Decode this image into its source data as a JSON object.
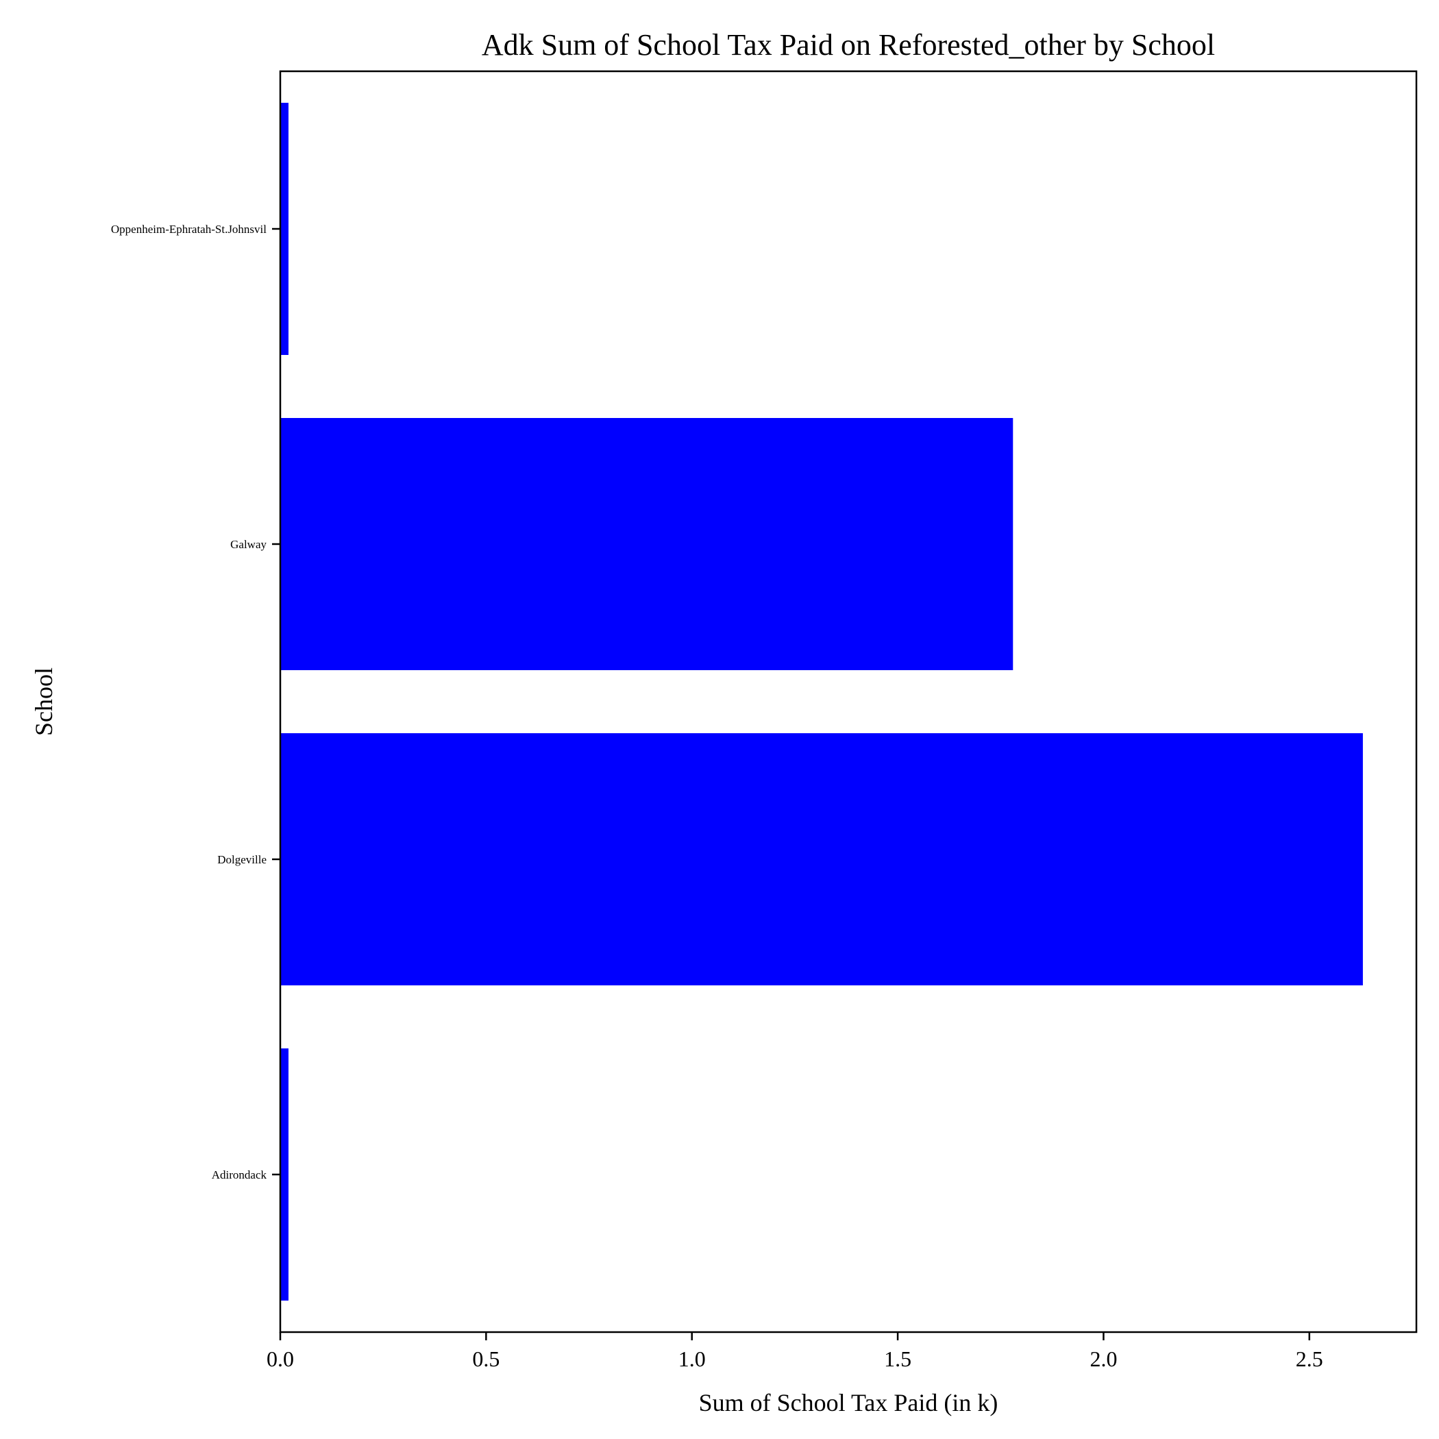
{
  "chart_data": {
    "type": "bar",
    "orientation": "horizontal",
    "title": "Adk Sum of School Tax Paid on Reforested_other by School",
    "xlabel": "Sum of School Tax Paid (in k)",
    "ylabel": "School",
    "categories": [
      "Adirondack",
      "Dolgeville",
      "Galway",
      "Oppenheim-Ephratah-St.Johnsvil"
    ],
    "values": [
      0.02,
      2.63,
      1.78,
      0.02
    ],
    "xlim": [
      0,
      2.76
    ],
    "xticks": [
      0.0,
      0.5,
      1.0,
      1.5,
      2.0,
      2.5
    ],
    "xtick_labels": [
      "0.0",
      "0.5",
      "1.0",
      "1.5",
      "2.0",
      "2.5"
    ],
    "grid": false,
    "legend": false,
    "bar_color": "#0000ff"
  }
}
